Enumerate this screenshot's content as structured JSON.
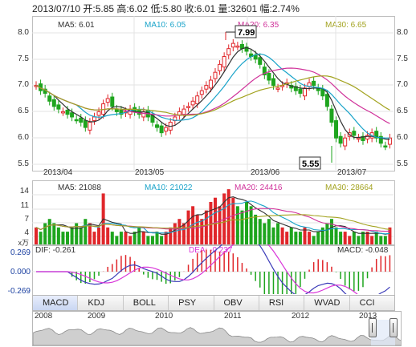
{
  "header": {
    "text": "2013/07/10 开:5.85 高:6.02 低:5.80 收:6.01 量:32601 幅:2.74%"
  },
  "price_panel": {
    "ma5": "MA5: 6.01",
    "ma10": "MA10: 6.05",
    "ma20": "MA20: 6.35",
    "ma30": "MA30: 6.65",
    "y_ticks": [
      "8.0",
      "7.5",
      "7.0",
      "6.5",
      "6.0",
      "5.5"
    ],
    "high_marker": "7.99",
    "low_marker": "5.55",
    "dates": [
      "2013/04",
      "2013/05",
      "2013/06",
      "2013/07"
    ]
  },
  "volume_panel": {
    "ma5": "MA5: 21088",
    "ma10": "MA10: 21022",
    "ma20": "MA20: 24416",
    "ma30": "MA30: 28664",
    "y_ticks": [
      "14",
      "11",
      "7",
      "4"
    ],
    "unit": "x万"
  },
  "macd_panel": {
    "dif": "DIF: -0.261",
    "dea": "DEA: -0.237",
    "macd": "MACD: -0.048",
    "y_ticks": [
      "0.269",
      "0.000",
      "-0.269"
    ]
  },
  "tabs": [
    "MACD",
    "KDJ",
    "BOLL",
    "PSY",
    "OBV",
    "RSI",
    "WVAD",
    "CCI"
  ],
  "active_tab": "MACD",
  "navigator": {
    "years": [
      "2008",
      "2009",
      "2010",
      "2011",
      "2012",
      "2013"
    ]
  },
  "colors": {
    "up": "#e0262a",
    "down": "#1ea51e",
    "ma5": "#333333",
    "ma10": "#19a3c9",
    "ma20": "#d0329a",
    "ma30": "#a3a320",
    "dif": "#3a3ab8",
    "dea": "#d936d9"
  }
}
